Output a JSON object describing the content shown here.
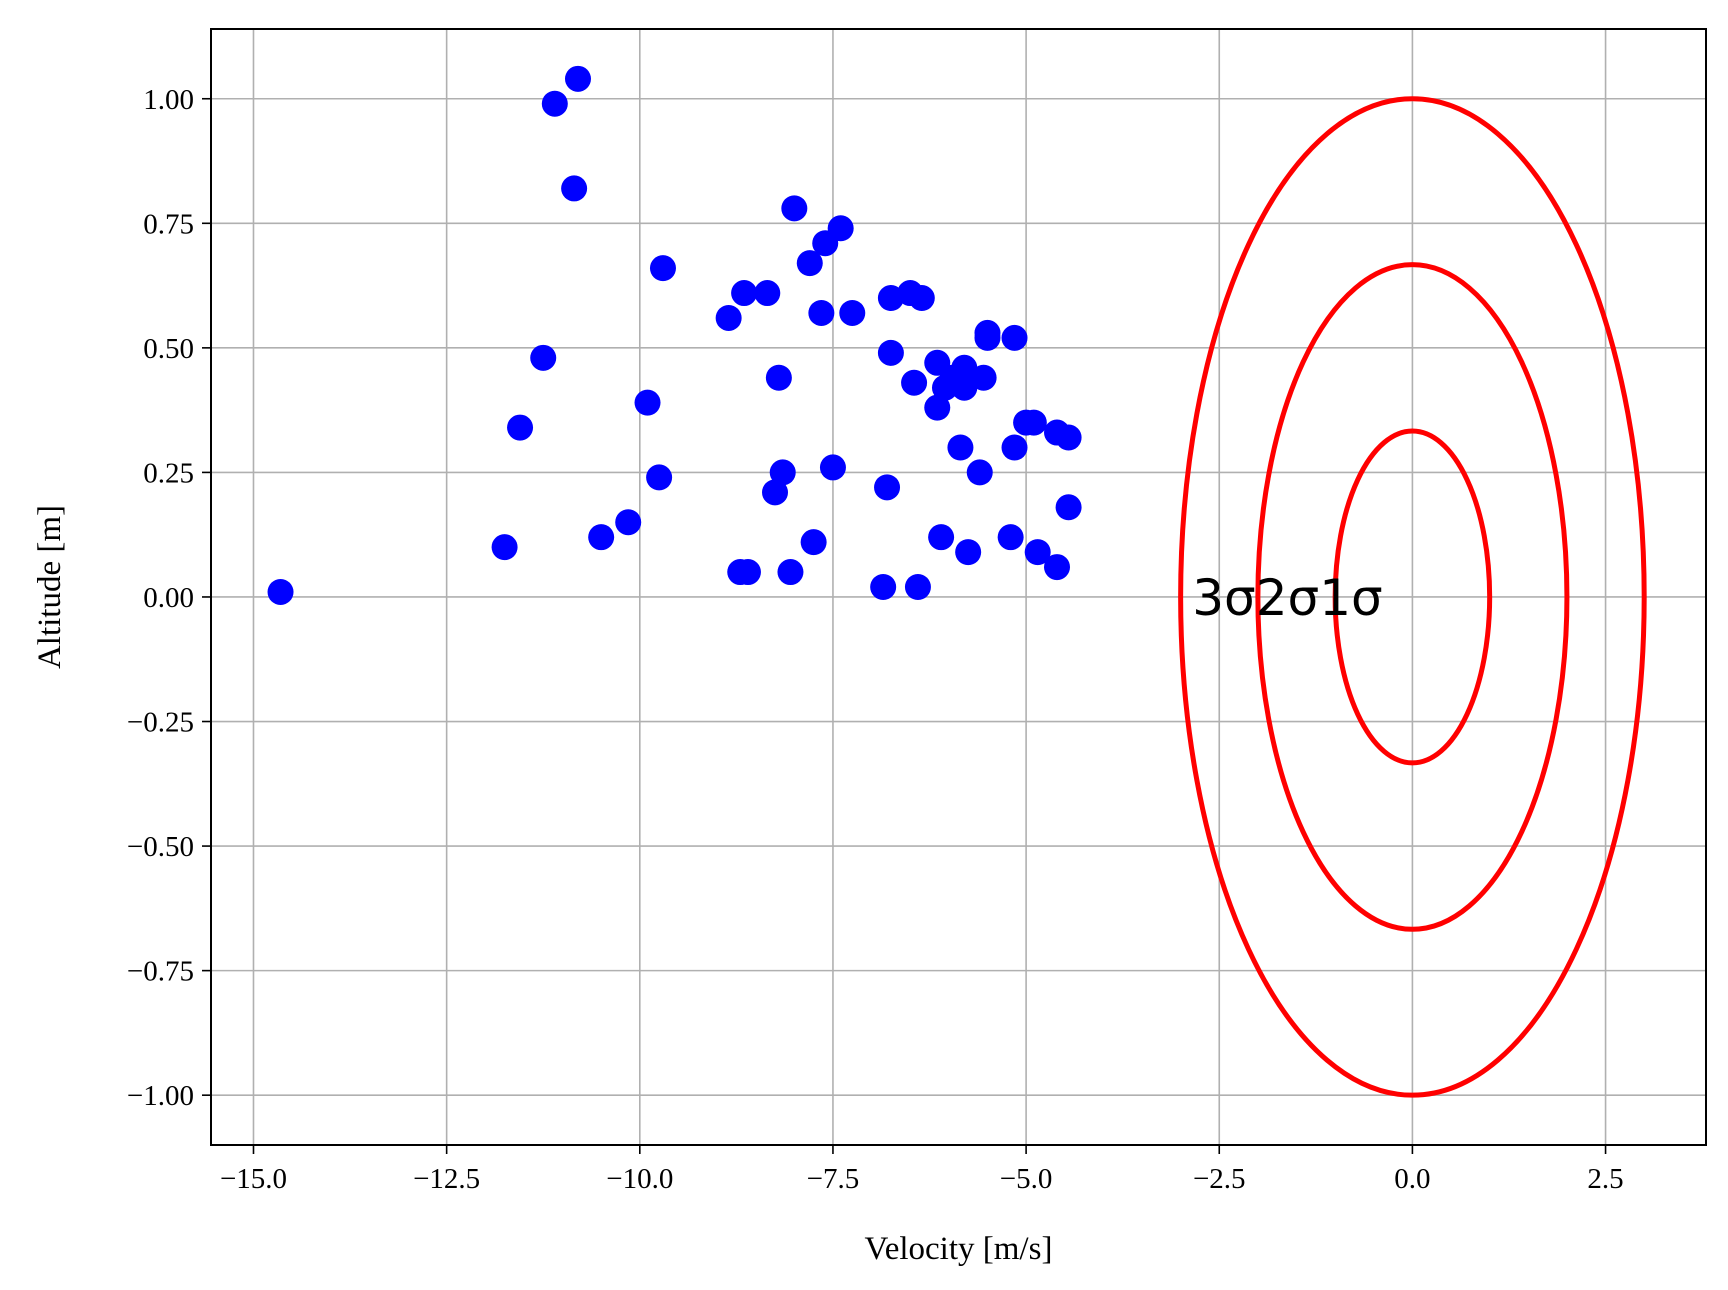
{
  "chart_data": {
    "type": "scatter",
    "xlabel": "Velocity [m/s]",
    "ylabel": "Altitude [m]",
    "xlim": [
      -15.55,
      3.8
    ],
    "ylim": [
      -1.1,
      1.14
    ],
    "xticks": [
      -15.0,
      -12.5,
      -10.0,
      -7.5,
      -5.0,
      -2.5,
      0.0,
      2.5
    ],
    "xtick_labels": [
      "−15.0",
      "−12.5",
      "−10.0",
      "−7.5",
      "−5.0",
      "−2.5",
      "0.0",
      "2.5"
    ],
    "yticks": [
      1.0,
      0.75,
      0.5,
      0.25,
      0.0,
      -0.25,
      -0.5,
      -0.75,
      -1.0
    ],
    "ytick_labels": [
      "1.00",
      "0.75",
      "0.50",
      "0.25",
      "0.00",
      "−0.25",
      "−0.50",
      "−0.75",
      "−1.00"
    ],
    "grid": true,
    "colors": {
      "points": "#0000ff",
      "ellipses": "#ff0000",
      "grid": "#b0b0b0"
    },
    "points": [
      [
        -14.65,
        0.01
      ],
      [
        -11.75,
        0.1
      ],
      [
        -11.55,
        0.34
      ],
      [
        -11.25,
        0.48
      ],
      [
        -11.1,
        0.99
      ],
      [
        -10.85,
        0.82
      ],
      [
        -10.8,
        1.04
      ],
      [
        -10.5,
        0.12
      ],
      [
        -10.15,
        0.15
      ],
      [
        -9.9,
        0.39
      ],
      [
        -9.75,
        0.24
      ],
      [
        -9.7,
        0.66
      ],
      [
        -8.85,
        0.56
      ],
      [
        -8.65,
        0.61
      ],
      [
        -8.7,
        0.05
      ],
      [
        -8.6,
        0.05
      ],
      [
        -8.35,
        0.61
      ],
      [
        -8.25,
        0.21
      ],
      [
        -8.2,
        0.44
      ],
      [
        -8.15,
        0.25
      ],
      [
        -8.05,
        0.05
      ],
      [
        -8.0,
        0.78
      ],
      [
        -7.8,
        0.67
      ],
      [
        -7.75,
        0.11
      ],
      [
        -7.65,
        0.57
      ],
      [
        -7.6,
        0.71
      ],
      [
        -7.5,
        0.26
      ],
      [
        -7.4,
        0.74
      ],
      [
        -7.25,
        0.57
      ],
      [
        -6.85,
        0.02
      ],
      [
        -6.8,
        0.22
      ],
      [
        -6.75,
        0.6
      ],
      [
        -6.75,
        0.49
      ],
      [
        -6.5,
        0.61
      ],
      [
        -6.45,
        0.43
      ],
      [
        -6.4,
        0.02
      ],
      [
        -6.35,
        0.6
      ],
      [
        -6.15,
        0.47
      ],
      [
        -6.15,
        0.38
      ],
      [
        -6.1,
        0.12
      ],
      [
        -6.05,
        0.42
      ],
      [
        -5.95,
        0.44
      ],
      [
        -5.85,
        0.3
      ],
      [
        -5.8,
        0.46
      ],
      [
        -5.8,
        0.42
      ],
      [
        -5.75,
        0.09
      ],
      [
        -5.6,
        0.25
      ],
      [
        -5.55,
        0.44
      ],
      [
        -5.5,
        0.52
      ],
      [
        -5.5,
        0.53
      ],
      [
        -5.2,
        0.12
      ],
      [
        -5.15,
        0.3
      ],
      [
        -5.15,
        0.52
      ],
      [
        -5.0,
        0.35
      ],
      [
        -4.9,
        0.35
      ],
      [
        -4.85,
        0.09
      ],
      [
        -4.6,
        0.06
      ],
      [
        -4.6,
        0.33
      ],
      [
        -4.45,
        0.18
      ],
      [
        -4.45,
        0.32
      ]
    ],
    "ellipses": [
      {
        "label": "1σ",
        "cx": 0.0,
        "cy": 0.0,
        "rx": 1.0,
        "ry": 0.333
      },
      {
        "label": "2σ",
        "cx": 0.0,
        "cy": 0.0,
        "rx": 2.0,
        "ry": 0.667
      },
      {
        "label": "3σ",
        "cx": 0.0,
        "cy": 0.0,
        "rx": 3.0,
        "ry": 1.0
      }
    ],
    "annotation": "3σ2σ1σ",
    "annotation_pos": [
      -2.85,
      0.0
    ]
  }
}
